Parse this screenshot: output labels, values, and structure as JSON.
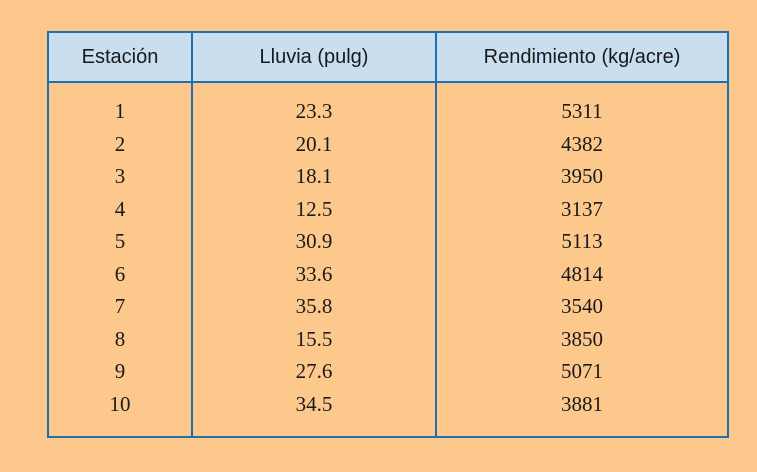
{
  "table": {
    "headers": [
      "Estación",
      "Lluvia (pulg)",
      "Rendimiento (kg/acre)"
    ],
    "rows": [
      [
        "1",
        "23.3",
        "5311"
      ],
      [
        "2",
        "20.1",
        "4382"
      ],
      [
        "3",
        "18.1",
        "3950"
      ],
      [
        "4",
        "12.5",
        "3137"
      ],
      [
        "5",
        "30.9",
        "5113"
      ],
      [
        "6",
        "33.6",
        "4814"
      ],
      [
        "7",
        "35.8",
        "3540"
      ],
      [
        "8",
        "15.5",
        "3850"
      ],
      [
        "9",
        "27.6",
        "5071"
      ],
      [
        "10",
        "34.5",
        "3881"
      ]
    ]
  },
  "colors": {
    "background": "#fdc88c",
    "header_background": "#c9dff0",
    "border": "#1e6fb3"
  }
}
